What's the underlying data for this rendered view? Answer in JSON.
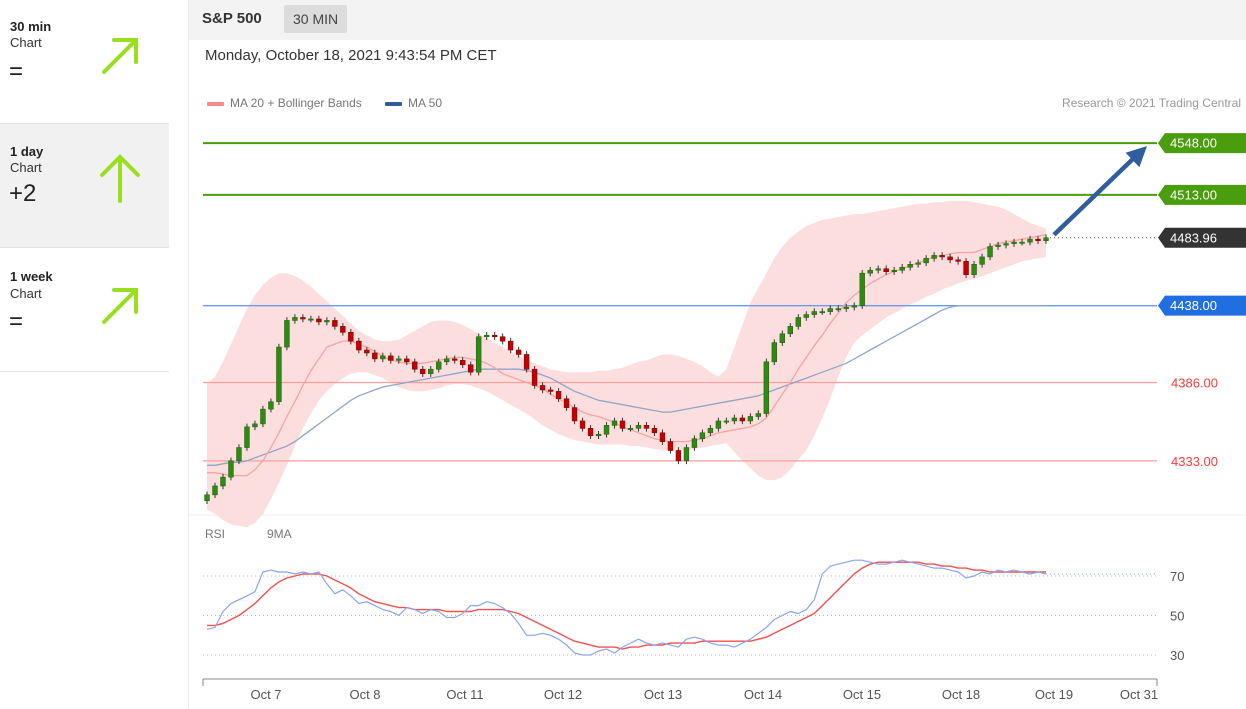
{
  "timeframes": [
    {
      "period": "30 min",
      "kind": "Chart",
      "score": "=",
      "direction": "up-right",
      "arrow_icon": "arrow-up-right-icon",
      "color": "#9adf1f"
    },
    {
      "period": "1 day",
      "kind": "Chart",
      "score": "+2",
      "direction": "up",
      "arrow_icon": "arrow-up-icon",
      "color": "#9adf1f"
    },
    {
      "period": "1 week",
      "kind": "Chart",
      "score": "=",
      "direction": "up-right",
      "arrow_icon": "arrow-up-right-icon",
      "color": "#9adf1f"
    }
  ],
  "header": {
    "symbol": "S&P 500",
    "interval": "30 MIN"
  },
  "datetime": "Monday, October 18, 2021 9:43:54 PM CET",
  "legend": {
    "ma20": {
      "label": "MA 20 + Bollinger Bands",
      "color": "#f88a8a"
    },
    "ma50": {
      "label": "MA 50",
      "color": "#2f5d9e"
    }
  },
  "copyright": "Research © 2021 Trading Central",
  "rsi_legend": {
    "rsi": {
      "label": "RSI",
      "color": "#6f8fe8"
    },
    "ma9": {
      "label": "9MA",
      "color": "#ff0000"
    }
  },
  "chart_data": {
    "type": "candlestick",
    "symbol": "S&P 500",
    "interval": "30 MIN",
    "x_ticks": [
      "Oct 7",
      "Oct 8",
      "Oct 11",
      "Oct 12",
      "Oct 13",
      "Oct 14",
      "Oct 15",
      "Oct 18",
      "Oct 19",
      "Oct 31"
    ],
    "ylim": [
      4295,
      4565
    ],
    "levels": [
      {
        "value": 4548.0,
        "label": "4548.00",
        "role": "resistance target",
        "color": "#4a9d0c"
      },
      {
        "value": 4513.0,
        "label": "4513.00",
        "role": "resistance",
        "color": "#4a9d0c"
      },
      {
        "value": 4483.96,
        "label": "4483.96",
        "role": "last price",
        "color": "#333333"
      },
      {
        "value": 4438.0,
        "label": "4438.00",
        "role": "pivot",
        "color": "#1f6fe0"
      },
      {
        "value": 4386.0,
        "label": "4386.00",
        "role": "support",
        "color": "#ff3a3a"
      },
      {
        "value": 4333.0,
        "label": "4333.00",
        "role": "support",
        "color": "#ff3a3a"
      }
    ],
    "forecast_arrow": {
      "from": 4483.96,
      "to": 4548.0,
      "color": "#2f5d9e"
    },
    "closes": [
      4310,
      4316,
      4322,
      4333,
      4342,
      4356,
      4358,
      4368,
      4373,
      4410,
      4428,
      4430,
      4429,
      4429,
      4427,
      4428,
      4424,
      4420,
      4414,
      4408,
      4406,
      4402,
      4404,
      4401,
      4402,
      4400,
      4395,
      4392,
      4395,
      4400,
      4402,
      4401,
      4398,
      4393,
      4417,
      4418,
      4417,
      4414,
      4408,
      4405,
      4395,
      4384,
      4381,
      4380,
      4375,
      4369,
      4360,
      4355,
      4350,
      4351,
      4357,
      4360,
      4355,
      4355,
      4357,
      4355,
      4352,
      4346,
      4340,
      4333,
      4342,
      4348,
      4352,
      4355,
      4360,
      4360,
      4362,
      4360,
      4363,
      4365,
      4400,
      4413,
      4419,
      4424,
      4430,
      4432,
      4434,
      4434,
      4436,
      4436,
      4437,
      4438,
      4460,
      4462,
      4463,
      4461,
      4462,
      4464,
      4466,
      4467,
      4470,
      4472,
      4471,
      4469,
      4468,
      4459,
      4466,
      4471,
      4478,
      4479,
      4480,
      4481,
      4481,
      4483,
      4482,
      4483.96
    ],
    "ma20": [
      4325,
      4325,
      4324,
      4323,
      4323,
      4323,
      4327,
      4333,
      4342,
      4352,
      4363,
      4373,
      4384,
      4394,
      4402,
      4410,
      4412,
      4414,
      4414,
      4412,
      4410,
      4407,
      4404,
      4401,
      4400,
      4399,
      4399,
      4399,
      4400,
      4401,
      4402,
      4403,
      4403,
      4402,
      4401,
      4399,
      4396,
      4392,
      4390,
      4388,
      4386,
      4384,
      4382,
      4378,
      4375,
      4372,
      4369,
      4366,
      4364,
      4363,
      4361,
      4359,
      4356,
      4354,
      4352,
      4350,
      4348,
      4347,
      4346,
      4346,
      4346,
      4347,
      4348,
      4350,
      4352,
      4353,
      4354,
      4355,
      4356,
      4358,
      4362,
      4370,
      4378,
      4386,
      4395,
      4403,
      4411,
      4418,
      4426,
      4433,
      4440,
      4445,
      4449,
      4453,
      4456,
      4459,
      4461,
      4463,
      4465,
      4467,
      4469,
      4471,
      4472,
      4473,
      4474,
      4474,
      4474,
      4476,
      4478,
      4480,
      4481,
      4482,
      4483,
      4484,
      4485,
      4486
    ],
    "bb_upper": [
      4385,
      4390,
      4400,
      4412,
      4424,
      4436,
      4445,
      4452,
      4457,
      4460,
      4460,
      4458,
      4455,
      4451,
      4446,
      4441,
      4436,
      4431,
      4426,
      4421,
      4418,
      4415,
      4414,
      4414,
      4415,
      4418,
      4421,
      4424,
      4427,
      4428,
      4428,
      4427,
      4425,
      4422,
      4419,
      4416,
      4413,
      4410,
      4407,
      4404,
      4401,
      4399,
      4397,
      4395,
      4394,
      4393,
      4393,
      4393,
      4393,
      4394,
      4394,
      4395,
      4396,
      4398,
      4400,
      4401,
      4403,
      4405,
      4405,
      4404,
      4402,
      4400,
      4397,
      4393,
      4390,
      4395,
      4410,
      4425,
      4440,
      4450,
      4460,
      4470,
      4478,
      4484,
      4488,
      4492,
      4494,
      4496,
      4497,
      4498,
      4499,
      4500,
      4500,
      4501,
      4502,
      4503,
      4504,
      4505,
      4506,
      4507,
      4507,
      4508,
      4508,
      4509,
      4509,
      4509,
      4508,
      4507,
      4506,
      4505,
      4503,
      4500,
      4497,
      4494,
      4492,
      4490
    ],
    "bb_lower": [
      4300,
      4297,
      4293,
      4290,
      4289,
      4288,
      4291,
      4297,
      4307,
      4318,
      4330,
      4343,
      4355,
      4365,
      4374,
      4380,
      4385,
      4389,
      4392,
      4393,
      4393,
      4391,
      4389,
      4386,
      4383,
      4381,
      4380,
      4380,
      4381,
      4382,
      4384,
      4385,
      4385,
      4384,
      4382,
      4380,
      4377,
      4374,
      4371,
      4368,
      4365,
      4361,
      4357,
      4354,
      4351,
      4349,
      4347,
      4346,
      4345,
      4344,
      4344,
      4344,
      4344,
      4343,
      4343,
      4342,
      4341,
      4340,
      4340,
      4340,
      4340,
      4341,
      4342,
      4343,
      4344,
      4345,
      4339,
      4333,
      4328,
      4323,
      4320,
      4320,
      4322,
      4327,
      4334,
      4340,
      4350,
      4362,
      4375,
      4390,
      4403,
      4413,
      4418,
      4422,
      4426,
      4430,
      4433,
      4436,
      4439,
      4441,
      4444,
      4446,
      4449,
      4451,
      4453,
      4455,
      4456,
      4458,
      4460,
      4462,
      4464,
      4466,
      4468,
      4469,
      4470,
      4471
    ],
    "ma50": [
      4330,
      4330,
      4331,
      4332,
      4332,
      4333,
      4335,
      4337,
      4339,
      4341,
      4343,
      4346,
      4350,
      4354,
      4358,
      4362,
      4366,
      4370,
      4374,
      4377,
      4379,
      4381,
      4383,
      4384,
      4385,
      4386,
      4387,
      4388,
      4389,
      4390,
      4391,
      4392,
      4393,
      4394,
      4395,
      4395,
      4395,
      4395,
      4395,
      4395,
      4394,
      4393,
      4391,
      4389,
      4386,
      4383,
      4380,
      4378,
      4376,
      4374,
      4373,
      4372,
      4371,
      4370,
      4369,
      4368,
      4367,
      4366,
      4366,
      4367,
      4368,
      4369,
      4370,
      4371,
      4372,
      4373,
      4374,
      4375,
      4376,
      4377,
      4379,
      4381,
      4383,
      4385,
      4387,
      4389,
      4391,
      4393,
      4395,
      4397,
      4399,
      4402,
      4405,
      4408,
      4411,
      4414,
      4417,
      4420,
      4423,
      4426,
      4429,
      4432,
      4435,
      4437,
      4438,
      4438,
      4438,
      4438,
      4438,
      4438,
      4438,
      4438,
      4438,
      4438,
      4438,
      4438
    ],
    "rsi": {
      "levels": [
        70,
        50,
        30
      ],
      "rsi_values": [
        43,
        44,
        52,
        56,
        58,
        60,
        62,
        72,
        73,
        72,
        72,
        71,
        72,
        71,
        72,
        66,
        61,
        63,
        60,
        56,
        57,
        55,
        53,
        52,
        50,
        54,
        53,
        51,
        53,
        52,
        49,
        49,
        51,
        55,
        55,
        57,
        56,
        54,
        51,
        46,
        40,
        40,
        41,
        40,
        38,
        35,
        31,
        30,
        30,
        32,
        33,
        31,
        34,
        36,
        38,
        36,
        35,
        36,
        35,
        34,
        38,
        39,
        38,
        36,
        35,
        35,
        34,
        36,
        38,
        41,
        44,
        48,
        50,
        52,
        51,
        53,
        58,
        71,
        75,
        76,
        77,
        78,
        78,
        77,
        76,
        76,
        77,
        78,
        77,
        76,
        75,
        74,
        74,
        73,
        72,
        69,
        70,
        72,
        71,
        73,
        72,
        73,
        72,
        71,
        72,
        71
      ],
      "ma9_values": [
        45,
        45,
        46,
        48,
        50,
        53,
        56,
        60,
        64,
        67,
        69,
        70,
        71,
        71,
        71,
        70,
        68,
        66,
        64,
        61,
        59,
        57,
        56,
        55,
        54,
        54,
        53,
        53,
        53,
        53,
        52,
        52,
        52,
        52,
        53,
        53,
        53,
        53,
        52,
        51,
        49,
        47,
        45,
        43,
        41,
        39,
        37,
        36,
        35,
        34,
        34,
        34,
        33,
        34,
        34,
        35,
        35,
        35,
        36,
        36,
        36,
        36,
        37,
        37,
        37,
        37,
        37,
        37,
        37,
        38,
        39,
        41,
        43,
        45,
        47,
        49,
        51,
        55,
        59,
        63,
        67,
        71,
        74,
        76,
        77,
        77,
        77,
        77,
        77,
        77,
        76,
        76,
        75,
        75,
        74,
        74,
        73,
        73,
        72,
        72,
        72,
        72,
        72,
        72,
        72,
        72
      ]
    }
  }
}
